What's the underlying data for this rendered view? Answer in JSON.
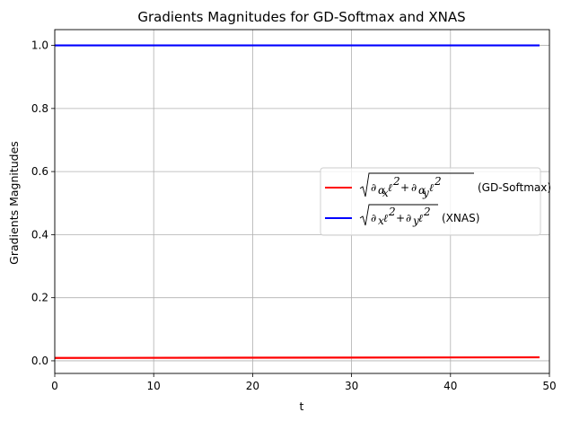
{
  "chart_data": {
    "type": "line",
    "title": "Gradients Magnitudes for GD-Softmax and XNAS",
    "xlabel": "t",
    "ylabel": "Gradients Magnitudes",
    "xlim": [
      0,
      50
    ],
    "ylim": [
      -0.04,
      1.05
    ],
    "x_ticks": [
      0,
      10,
      20,
      30,
      40,
      50
    ],
    "x_tick_labels": [
      "0",
      "10",
      "20",
      "30",
      "40",
      "50"
    ],
    "y_ticks": [
      0.0,
      0.2,
      0.4,
      0.6,
      0.8,
      1.0
    ],
    "y_tick_labels": [
      "0.0",
      "0.2",
      "0.4",
      "0.6",
      "0.8",
      "1.0"
    ],
    "grid": true,
    "legend_position": "center-right",
    "series": [
      {
        "name": "(GD-Softmax)",
        "math_label": "√(∂αxℓ² + ∂αyℓ²)",
        "color": "#ff0000",
        "x": [
          0,
          49
        ],
        "y": [
          0.009,
          0.011
        ]
      },
      {
        "name": "(XNAS)",
        "math_label": "√(∂xℓ² + ∂yℓ²)",
        "color": "#0000ff",
        "x": [
          0,
          49
        ],
        "y": [
          1.0,
          1.0
        ]
      }
    ]
  }
}
